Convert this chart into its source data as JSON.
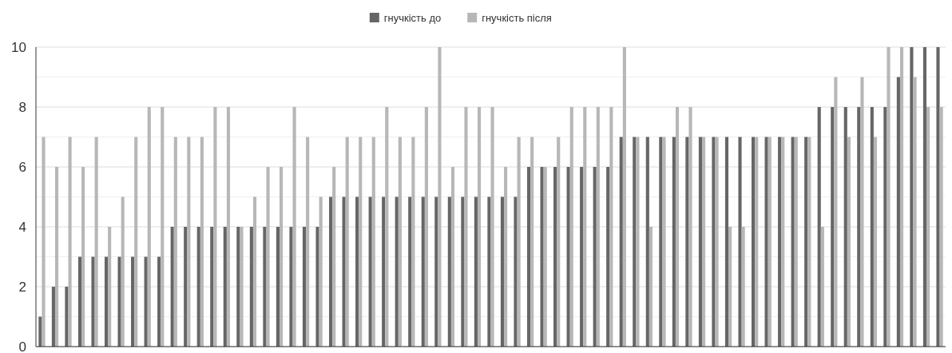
{
  "chart_data": {
    "type": "bar",
    "categories": [
      null,
      null,
      null,
      null,
      null,
      null,
      null,
      null,
      null,
      null,
      null,
      null,
      null,
      null,
      null,
      null,
      null,
      null,
      null,
      null,
      null,
      null,
      null,
      null,
      null,
      null,
      null,
      null,
      null,
      null,
      null,
      null,
      null,
      null,
      null,
      null,
      null,
      null,
      null,
      null,
      null,
      null,
      null,
      null,
      null,
      null,
      null,
      null,
      null,
      null,
      null,
      null,
      null,
      null,
      null,
      null,
      null,
      null,
      null,
      null,
      null,
      null,
      null,
      null,
      null,
      null,
      null,
      null,
      null
    ],
    "series": [
      {
        "name": "гнучкість до",
        "color": "#666666",
        "values": [
          1,
          2,
          2,
          3,
          3,
          3,
          3,
          3,
          3,
          3,
          4,
          4,
          4,
          4,
          4,
          4,
          4,
          4,
          4,
          4,
          4,
          4,
          5,
          5,
          5,
          5,
          5,
          5,
          5,
          5,
          5,
          5,
          5,
          5,
          5,
          5,
          5,
          6,
          6,
          6,
          6,
          6,
          6,
          6,
          7,
          7,
          7,
          7,
          7,
          7,
          7,
          7,
          7,
          7,
          7,
          7,
          7,
          7,
          7,
          8,
          8,
          8,
          8,
          8,
          8,
          9,
          10,
          10,
          10
        ]
      },
      {
        "name": "гнучкість після",
        "color": "#b7b7b7",
        "values": [
          7,
          6,
          7,
          6,
          7,
          4,
          5,
          7,
          8,
          8,
          7,
          7,
          7,
          8,
          8,
          4,
          5,
          6,
          6,
          8,
          7,
          5,
          6,
          7,
          7,
          7,
          8,
          7,
          7,
          8,
          10,
          6,
          8,
          8,
          8,
          6,
          7,
          7,
          6,
          7,
          8,
          8,
          8,
          8,
          10,
          7,
          4,
          7,
          8,
          8,
          7,
          7,
          4,
          4,
          7,
          7,
          7,
          7,
          7,
          4,
          9,
          7,
          9,
          7,
          10,
          10,
          9,
          8,
          8
        ]
      }
    ],
    "ylim": [
      0,
      10
    ],
    "yticks": [
      0,
      {
        "value": 1,
        "label": null
      },
      2,
      {
        "value": 3,
        "label": null
      },
      4,
      {
        "value": 5,
        "label": null
      },
      6,
      {
        "value": 7,
        "label": null
      },
      8,
      {
        "value": 9,
        "label": null
      },
      10
    ],
    "grid": true,
    "legend": "top",
    "tick_labels": "y"
  }
}
